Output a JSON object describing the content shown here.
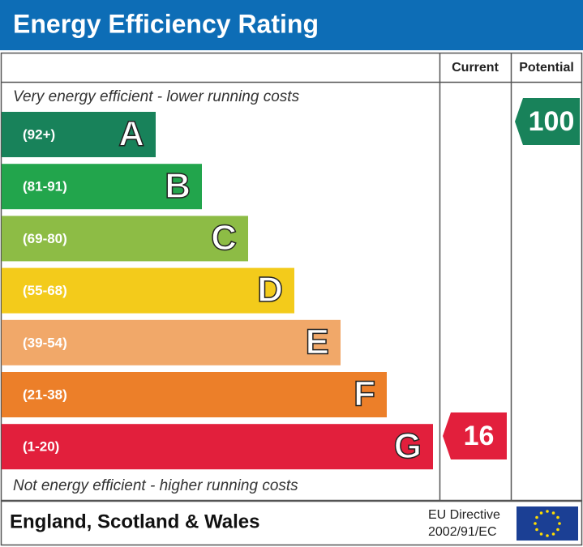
{
  "header": {
    "title": "Energy Efficiency Rating"
  },
  "columns": {
    "current": "Current",
    "potential": "Potential"
  },
  "top_note": "Very energy efficient - lower running costs",
  "bottom_note": "Not energy efficient - higher running costs",
  "bands": [
    {
      "range": "(92+)",
      "letter": "A",
      "color": "#18825a"
    },
    {
      "range": "(81-91)",
      "letter": "B",
      "color": "#22a54c"
    },
    {
      "range": "(69-80)",
      "letter": "C",
      "color": "#8dbc45"
    },
    {
      "range": "(55-68)",
      "letter": "D",
      "color": "#f3cb1b"
    },
    {
      "range": "(39-54)",
      "letter": "E",
      "color": "#f1a869"
    },
    {
      "range": "(21-38)",
      "letter": "F",
      "color": "#ec7f29"
    },
    {
      "range": "(1-20)",
      "letter": "G",
      "color": "#e21f3c"
    }
  ],
  "current": {
    "value": 16,
    "color": "#e21f3c"
  },
  "potential": {
    "value": 100,
    "color": "#18825a"
  },
  "footer": {
    "region": "England, Scotland & Wales",
    "directive_line1": "EU Directive",
    "directive_line2": "2002/91/EC"
  }
}
